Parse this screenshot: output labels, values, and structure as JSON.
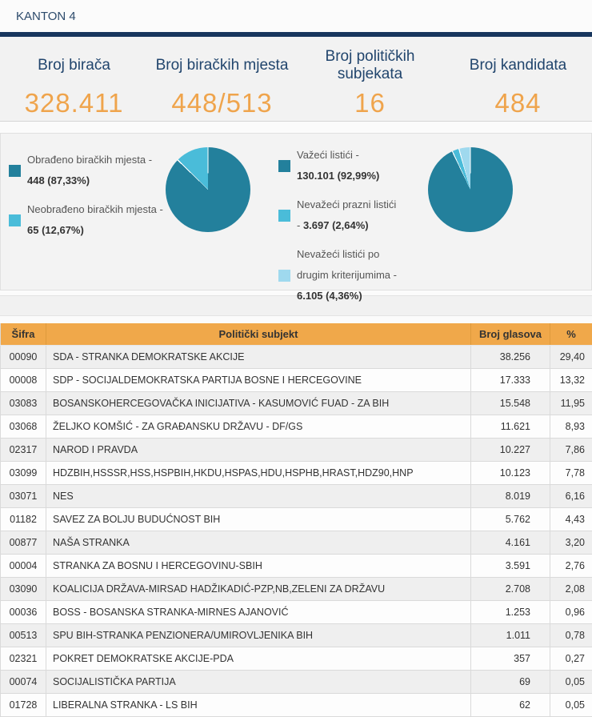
{
  "header": {
    "title": "KANTON 4"
  },
  "stats": [
    {
      "label": "Broj birača",
      "value": "328.411"
    },
    {
      "label": "Broj biračkih mjesta",
      "value": "448/513"
    },
    {
      "label": "Broj političkih subjekata",
      "value": "16"
    },
    {
      "label": "Broj kandidata",
      "value": "484"
    }
  ],
  "colors": {
    "navy": "#17365d",
    "orange_value": "#efa44c",
    "table_header": "#f0a84a",
    "pie_dark": "#23809c",
    "pie_medium": "#4abcd9",
    "pie_light": "#9fd9ee"
  },
  "chart_data": [
    {
      "type": "pie",
      "title": "Biračka mjesta",
      "labels": [
        "Obrađeno biračkih mjesta",
        "Neobrađeno biračkih mjesta"
      ],
      "values": [
        448,
        65
      ],
      "percents": [
        87.33,
        12.67
      ],
      "colors": [
        "#23809c",
        "#4abcd9"
      ],
      "legend": [
        {
          "label": "Obrađeno biračkih mjesta -",
          "value": "448 (87,33%)",
          "color": "#23809c"
        },
        {
          "label": "Neobrađeno biračkih mjesta -",
          "value": "65 (12,67%)",
          "color": "#4abcd9"
        }
      ]
    },
    {
      "type": "pie",
      "title": "Listići",
      "labels": [
        "Važeći listići",
        "Nevažeći prazni listići",
        "Nevažeći listići po drugim kriterijumima"
      ],
      "values": [
        130101,
        3697,
        6105
      ],
      "percents": [
        92.99,
        2.64,
        4.36
      ],
      "colors": [
        "#23809c",
        "#4abcd9",
        "#9fd9ee"
      ],
      "legend": [
        {
          "label": "Važeći listići -",
          "value": "130.101 (92,99%)",
          "color": "#23809c"
        },
        {
          "label": "Nevažeći prazni listići -",
          "value": "3.697 (2,64%)",
          "color": "#4abcd9"
        },
        {
          "label": "Nevažeći listići po drugim kriterijumima -",
          "value": "6.105 (4,36%)",
          "color": "#9fd9ee"
        }
      ]
    }
  ],
  "table": {
    "columns": [
      "Šifra",
      "Politički subjekt",
      "Broj glasova",
      "%"
    ],
    "rows": [
      [
        "00090",
        "SDA - STRANKA DEMOKRATSKE AKCIJE",
        "38.256",
        "29,40"
      ],
      [
        "00008",
        "SDP - SOCIJALDEMOKRATSKA PARTIJA BOSNE I HERCEGOVINE",
        "17.333",
        "13,32"
      ],
      [
        "03083",
        "BOSANSKOHERCEGOVAČKA INICIJATIVA - KASUMOVIĆ FUAD - ZA BIH",
        "15.548",
        "11,95"
      ],
      [
        "03068",
        "ŽELJKO KOMŠIĆ - ZA GRAĐANSKU DRŽAVU - DF/GS",
        "11.621",
        "8,93"
      ],
      [
        "02317",
        "NAROD I PRAVDA",
        "10.227",
        "7,86"
      ],
      [
        "03099",
        "HDZBIH,HSSSR,HSS,HSPBIH,HKDU,HSPAS,HDU,HSPHB,HRAST,HDZ90,HNP",
        "10.123",
        "7,78"
      ],
      [
        "03071",
        "NES",
        "8.019",
        "6,16"
      ],
      [
        "01182",
        "SAVEZ ZA BOLJU BUDUĆNOST BIH",
        "5.762",
        "4,43"
      ],
      [
        "00877",
        "NAŠA STRANKA",
        "4.161",
        "3,20"
      ],
      [
        "00004",
        "STRANKA ZA BOSNU I HERCEGOVINU-SBIH",
        "3.591",
        "2,76"
      ],
      [
        "03090",
        "KOALICIJA DRŽAVA-MIRSAD HADŽIKADIĆ-PZP,NB,ZELENI ZA DRŽAVU",
        "2.708",
        "2,08"
      ],
      [
        "00036",
        "BOSS - BOSANSKA STRANKA-MIRNES AJANOVIĆ",
        "1.253",
        "0,96"
      ],
      [
        "00513",
        "SPU BIH-STRANKA PENZIONERA/UMIROVLJENIKA BIH",
        "1.011",
        "0,78"
      ],
      [
        "02321",
        "POKRET DEMOKRATSKE AKCIJE-PDA",
        "357",
        "0,27"
      ],
      [
        "00074",
        "SOCIJALISTIČKA PARTIJA",
        "69",
        "0,05"
      ],
      [
        "01728",
        "LIBERALNA STRANKA - LS BIH",
        "62",
        "0,05"
      ]
    ]
  }
}
